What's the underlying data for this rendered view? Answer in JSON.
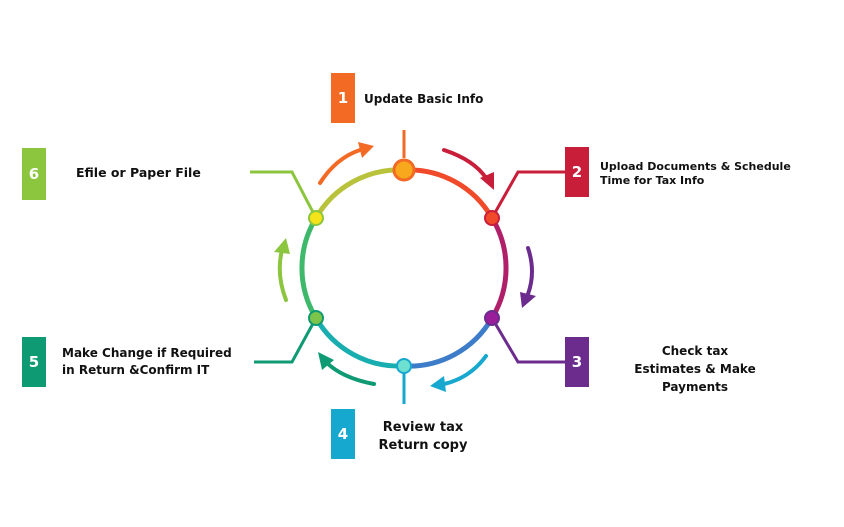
{
  "colors": {
    "step1": "#F26A24",
    "step2": "#C81E3A",
    "step3": "#6B2C8E",
    "step4": "#17A8CF",
    "step5": "#0E9A72",
    "step6": "#8CC63F"
  },
  "steps": [
    {
      "number": "1",
      "lines": [
        "Update Basic Info"
      ]
    },
    {
      "number": "2",
      "lines": [
        "Upload Documents & Schedule",
        "Time for Tax Info"
      ]
    },
    {
      "number": "3",
      "lines": [
        "Check tax",
        "Estimates & Make Payments"
      ]
    },
    {
      "number": "4",
      "lines": [
        "Review tax",
        "Return copy"
      ]
    },
    {
      "number": "5",
      "lines": [
        "Make Change if Required",
        "in Return &Confirm IT"
      ]
    },
    {
      "number": "6",
      "lines": [
        "Efile or Paper File"
      ]
    }
  ]
}
